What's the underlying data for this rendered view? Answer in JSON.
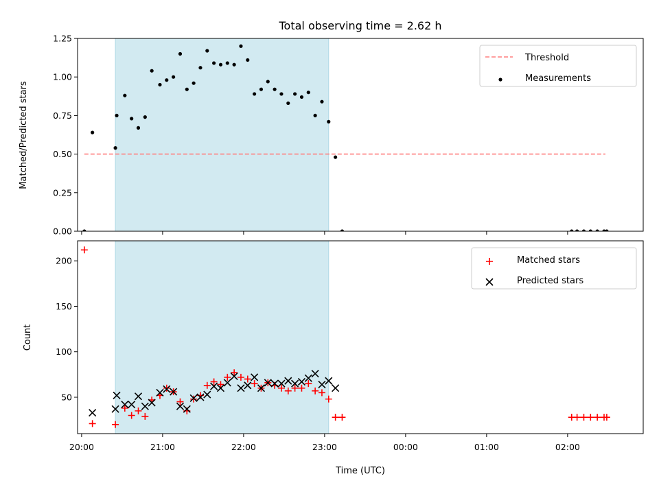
{
  "chart_data": [
    {
      "type": "scatter",
      "title": "Total observing time = 2.62 h",
      "ylabel": "Matched/Predicted stars",
      "ylim": [
        0,
        1.25
      ],
      "yticks": [
        0.0,
        0.25,
        0.5,
        0.75,
        1.0,
        1.25
      ],
      "ytick_labels": [
        "0.00",
        "0.25",
        "0.50",
        "0.75",
        "1.00",
        "1.25"
      ],
      "xlim": [
        "19:57",
        "02:56"
      ],
      "shaded_interval": [
        "20:25",
        "23:03"
      ],
      "shade_color": "#add8e6",
      "legend_position": "upper right",
      "series": [
        {
          "name": "Threshold",
          "style": "dashed-line",
          "color": "#ff7f7f",
          "x": [
            "20:02",
            "02:28"
          ],
          "y": [
            0.5,
            0.5
          ]
        },
        {
          "name": "Measurements",
          "style": "dot",
          "color": "#000000",
          "x": [
            "20:02",
            "20:08",
            "20:25",
            "20:26",
            "20:32",
            "20:37",
            "20:42",
            "20:47",
            "20:52",
            "20:58",
            "21:03",
            "21:08",
            "21:13",
            "21:18",
            "21:23",
            "21:28",
            "21:33",
            "21:38",
            "21:43",
            "21:48",
            "21:53",
            "21:58",
            "22:03",
            "22:08",
            "22:13",
            "22:18",
            "22:23",
            "22:28",
            "22:33",
            "22:38",
            "22:43",
            "22:48",
            "22:53",
            "22:58",
            "23:03",
            "23:08",
            "23:13",
            "02:03",
            "02:07",
            "02:12",
            "02:17",
            "02:22",
            "02:27",
            "02:29"
          ],
          "y": [
            0,
            0.64,
            0.54,
            0.75,
            0.88,
            0.73,
            0.67,
            0.74,
            1.04,
            0.95,
            0.98,
            1.0,
            1.15,
            0.92,
            0.96,
            1.06,
            1.17,
            1.09,
            1.08,
            1.09,
            1.08,
            1.2,
            1.11,
            0.89,
            0.92,
            0.97,
            0.92,
            0.89,
            0.83,
            0.89,
            0.87,
            0.9,
            0.75,
            0.84,
            0.71,
            0.48,
            0,
            0,
            0,
            0,
            0,
            0,
            0,
            0
          ]
        }
      ]
    },
    {
      "type": "scatter",
      "xlabel": "Time (UTC)",
      "ylabel": "Count",
      "ylim": [
        10,
        222
      ],
      "yticks": [
        50,
        100,
        150,
        200
      ],
      "ytick_labels": [
        "50",
        "100",
        "150",
        "200"
      ],
      "xlim": [
        "19:57",
        "02:56"
      ],
      "xticks": [
        "20:00",
        "21:00",
        "22:00",
        "23:00",
        "00:00",
        "01:00",
        "02:00"
      ],
      "shaded_interval": [
        "20:25",
        "23:03"
      ],
      "shade_color": "#add8e6",
      "legend_position": "upper right",
      "series": [
        {
          "name": "Matched stars",
          "marker": "+",
          "color": "#ff0000",
          "x": [
            "20:02",
            "20:08",
            "20:25",
            "20:32",
            "20:37",
            "20:42",
            "20:47",
            "20:52",
            "20:58",
            "21:03",
            "21:08",
            "21:13",
            "21:18",
            "21:23",
            "21:28",
            "21:33",
            "21:38",
            "21:43",
            "21:48",
            "21:53",
            "21:58",
            "22:03",
            "22:08",
            "22:13",
            "22:18",
            "22:23",
            "22:28",
            "22:33",
            "22:38",
            "22:43",
            "22:48",
            "22:53",
            "22:58",
            "23:03",
            "23:08",
            "23:13",
            "02:03",
            "02:07",
            "02:12",
            "02:17",
            "02:22",
            "02:27",
            "02:29"
          ],
          "y": [
            212,
            21,
            20,
            38,
            30,
            35,
            29,
            47,
            52,
            60,
            56,
            45,
            35,
            48,
            52,
            63,
            67,
            64,
            72,
            77,
            72,
            70,
            65,
            60,
            66,
            63,
            60,
            57,
            60,
            60,
            65,
            57,
            55,
            48,
            28,
            28,
            28,
            28,
            28,
            28,
            28,
            28,
            28
          ]
        },
        {
          "name": "Predicted stars",
          "marker": "x",
          "color": "#000000",
          "x": [
            "20:08",
            "20:25",
            "20:26",
            "20:32",
            "20:37",
            "20:42",
            "20:47",
            "20:52",
            "20:58",
            "21:03",
            "21:08",
            "21:13",
            "21:18",
            "21:23",
            "21:28",
            "21:33",
            "21:38",
            "21:43",
            "21:48",
            "21:53",
            "21:58",
            "22:03",
            "22:08",
            "22:13",
            "22:18",
            "22:23",
            "22:28",
            "22:33",
            "22:38",
            "22:43",
            "22:48",
            "22:53",
            "22:58",
            "23:03",
            "23:08"
          ],
          "y": [
            33,
            37,
            52,
            42,
            42,
            51,
            40,
            44,
            55,
            59,
            56,
            40,
            37,
            49,
            50,
            53,
            62,
            60,
            66,
            73,
            60,
            63,
            72,
            60,
            66,
            65,
            65,
            68,
            65,
            67,
            71,
            76,
            64,
            68,
            60
          ]
        }
      ]
    }
  ],
  "colors": {
    "shade": "#add8e6",
    "threshold": "#ff7f7f",
    "matched": "#ff0000",
    "predicted": "#000000"
  }
}
